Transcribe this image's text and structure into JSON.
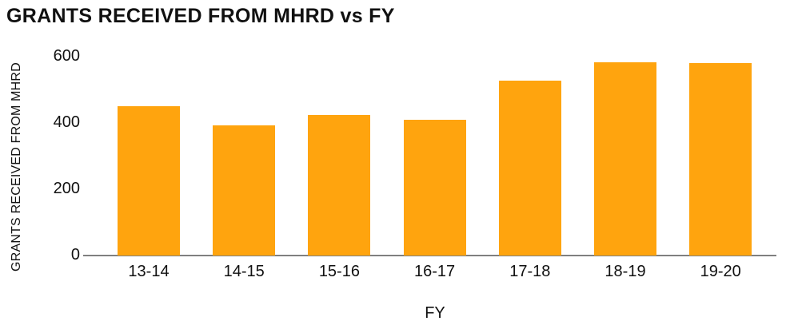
{
  "chart_data": {
    "type": "bar",
    "title": "GRANTS RECEIVED FROM MHRD vs FY",
    "xlabel": "FY",
    "ylabel": "GRANTS RECEIVED FROM MHRD",
    "categories": [
      "13-14",
      "14-15",
      "15-16",
      "16-17",
      "17-18",
      "18-19",
      "19-20"
    ],
    "values": [
      450,
      393,
      423,
      410,
      528,
      584,
      580
    ],
    "ylim": [
      0,
      600
    ],
    "yticks": [
      0,
      200,
      400,
      600
    ],
    "grid": false,
    "legend": false,
    "bar_color": "#FFA40E",
    "axis_line_color": "#808080",
    "text_color": "#111111"
  }
}
